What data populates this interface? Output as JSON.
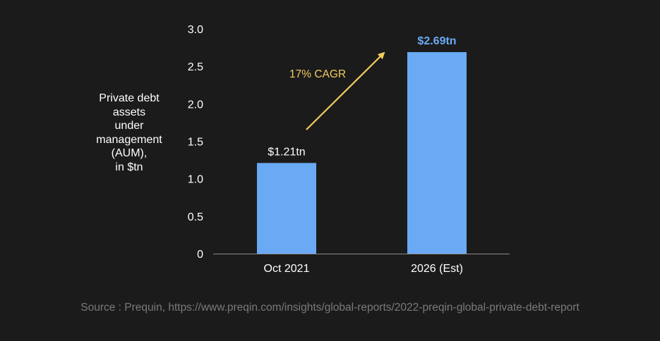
{
  "chart_data": {
    "type": "bar",
    "categories": [
      "Oct 2021",
      "2026 (Est)"
    ],
    "values": [
      1.21,
      2.69
    ],
    "value_labels": [
      "$1.21tn",
      "$2.69tn"
    ],
    "ylabel": "Private debt\nassets\nunder\nmanagement\n(AUM),\nin $tn",
    "ylim": [
      0,
      3.0
    ],
    "yticks": [
      0,
      0.5,
      1.0,
      1.5,
      2.0,
      2.5,
      3.0
    ],
    "ytick_labels": [
      "0",
      "0.5",
      "1.0",
      "1.5",
      "2.0",
      "2.5",
      "3.0"
    ],
    "grid": false,
    "annotation": "17% CAGR",
    "colors": {
      "bar": "#6aaaf5",
      "highlight_label": "#6aaaf5",
      "annotation": "#f2cd5c",
      "axis": "#8a8a8a",
      "background": "#1b1b1b"
    }
  },
  "source": "Source : Prequin, https://www.preqin.com/insights/global-reports/2022-preqin-global-private-debt-report"
}
